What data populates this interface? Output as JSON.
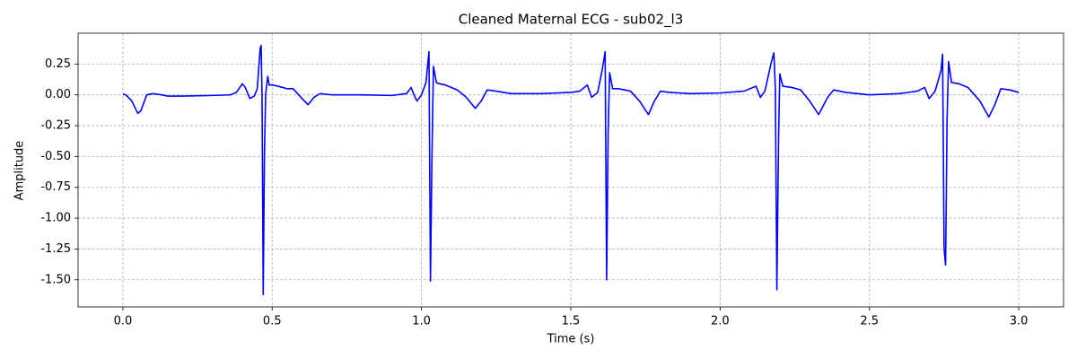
{
  "chart_data": {
    "type": "line",
    "title": "Cleaned Maternal ECG - sub02_l3",
    "x_label": "Time (s)",
    "y_label": "Amplitude",
    "color": "#0000ff",
    "grid": true,
    "xlim": [
      -0.15,
      3.15
    ],
    "ylim": [
      -1.72,
      0.5
    ],
    "xticks": [
      {
        "value": 0,
        "label": "0.0"
      },
      0.5,
      {
        "value": 1,
        "label": "1.0"
      },
      1.5,
      {
        "value": 2,
        "label": "2.0"
      },
      2.5,
      {
        "value": 3,
        "label": "3.0"
      }
    ],
    "yticks": [
      {
        "value": -1.5,
        "label": "-1.50"
      },
      -1.25,
      {
        "value": -1,
        "label": "-1.00"
      },
      -0.75,
      {
        "value": -0.5,
        "label": "-0.50"
      },
      -0.25,
      {
        "value": 0,
        "label": "0.00"
      },
      0.25
    ],
    "x": [
      0.0,
      0.01,
      0.03,
      0.05,
      0.06,
      0.08,
      0.1,
      0.13,
      0.15,
      0.2,
      0.3,
      0.36,
      0.38,
      0.4,
      0.41,
      0.425,
      0.44,
      0.45,
      0.46,
      0.463,
      0.466,
      0.47,
      0.474,
      0.478,
      0.485,
      0.49,
      0.5,
      0.52,
      0.55,
      0.57,
      0.6,
      0.62,
      0.64,
      0.66,
      0.7,
      0.8,
      0.9,
      0.95,
      0.965,
      0.975,
      0.985,
      1.0,
      1.015,
      1.025,
      1.03,
      1.035,
      1.04,
      1.05,
      1.06,
      1.08,
      1.1,
      1.12,
      1.15,
      1.18,
      1.2,
      1.22,
      1.25,
      1.3,
      1.4,
      1.5,
      1.53,
      1.555,
      1.57,
      1.59,
      1.605,
      1.615,
      1.62,
      1.625,
      1.63,
      1.64,
      1.66,
      1.7,
      1.73,
      1.76,
      1.78,
      1.8,
      1.83,
      1.9,
      2.0,
      2.08,
      2.12,
      2.135,
      2.15,
      2.17,
      2.18,
      2.185,
      2.19,
      2.196,
      2.2,
      2.21,
      2.24,
      2.27,
      2.3,
      2.33,
      2.36,
      2.38,
      2.42,
      2.5,
      2.6,
      2.66,
      2.685,
      2.7,
      2.72,
      2.74,
      2.745,
      2.75,
      2.755,
      2.76,
      2.765,
      2.775,
      2.8,
      2.83,
      2.87,
      2.9,
      2.92,
      2.94,
      2.97,
      3.0
    ],
    "values": [
      0.005,
      0.0,
      -0.05,
      -0.15,
      -0.13,
      0.0,
      0.01,
      0.0,
      -0.01,
      -0.01,
      -0.005,
      0.0,
      0.02,
      0.09,
      0.06,
      -0.03,
      -0.01,
      0.05,
      0.38,
      0.4,
      0.0,
      -1.62,
      -0.5,
      0.0,
      0.15,
      0.08,
      0.08,
      0.07,
      0.05,
      0.05,
      -0.03,
      -0.08,
      -0.02,
      0.01,
      0.0,
      0.0,
      -0.005,
      0.01,
      0.06,
      0.0,
      -0.05,
      0.0,
      0.1,
      0.35,
      -1.51,
      -0.5,
      0.23,
      0.1,
      0.09,
      0.08,
      0.06,
      0.04,
      -0.02,
      -0.11,
      -0.05,
      0.04,
      0.03,
      0.01,
      0.01,
      0.02,
      0.03,
      0.08,
      -0.02,
      0.02,
      0.2,
      0.35,
      -1.5,
      -0.3,
      0.18,
      0.05,
      0.05,
      0.03,
      -0.05,
      -0.16,
      -0.05,
      0.03,
      0.02,
      0.01,
      0.015,
      0.03,
      0.07,
      -0.02,
      0.03,
      0.25,
      0.34,
      0.05,
      -1.58,
      -0.3,
      0.17,
      0.07,
      0.06,
      0.04,
      -0.05,
      -0.16,
      -0.02,
      0.04,
      0.02,
      0.0,
      0.01,
      0.03,
      0.06,
      -0.03,
      0.03,
      0.2,
      0.33,
      -1.25,
      -1.38,
      -0.2,
      0.27,
      0.1,
      0.09,
      0.06,
      -0.05,
      -0.18,
      -0.08,
      0.05,
      0.04,
      0.02
    ]
  }
}
